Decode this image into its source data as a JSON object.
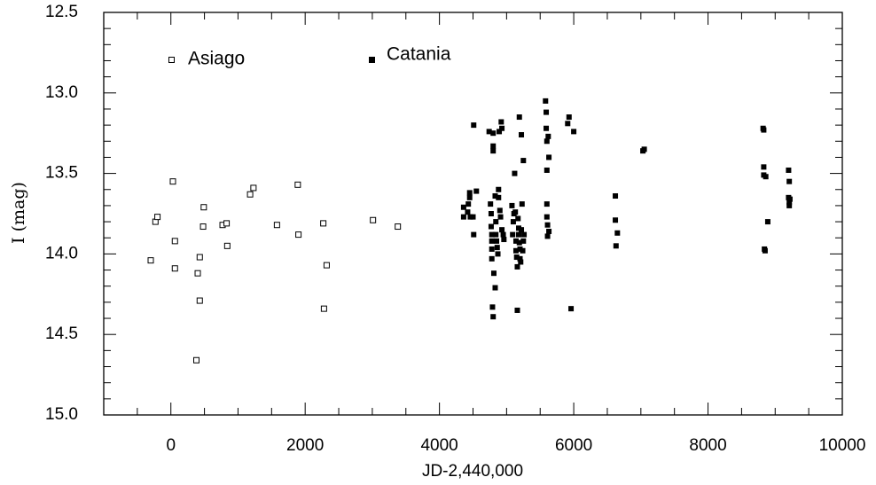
{
  "chart_data": {
    "type": "scatter",
    "xlabel": "JD-2,440,000",
    "ylabel": "I (mag)",
    "xlim": [
      -1000,
      10000
    ],
    "ylim": [
      15.0,
      12.5
    ],
    "y_inverted": true,
    "x_ticks": [
      0,
      2000,
      4000,
      6000,
      8000,
      10000
    ],
    "x_tick_labels": [
      "0",
      "2000",
      "4000",
      "6000",
      "8000",
      "10000"
    ],
    "y_ticks": [
      12.5,
      13.0,
      13.5,
      14.0,
      14.5,
      15.0
    ],
    "y_tick_labels": [
      "12.5",
      "13.0",
      "13.5",
      "14.0",
      "14.5",
      "15.0"
    ],
    "grid": false,
    "legend_placement": "top-left",
    "series": [
      {
        "name": "Asiago",
        "marker": "open-square",
        "points": [
          [
            -300,
            14.04
          ],
          [
            -230,
            13.8
          ],
          [
            -200,
            13.77
          ],
          [
            30,
            13.55
          ],
          [
            60,
            13.92
          ],
          [
            60,
            14.09
          ],
          [
            400,
            14.12
          ],
          [
            430,
            14.02
          ],
          [
            430,
            14.29
          ],
          [
            380,
            14.66
          ],
          [
            480,
            13.83
          ],
          [
            490,
            13.71
          ],
          [
            770,
            13.82
          ],
          [
            830,
            13.81
          ],
          [
            840,
            13.95
          ],
          [
            1180,
            13.63
          ],
          [
            1230,
            13.59
          ],
          [
            1580,
            13.82
          ],
          [
            1890,
            13.57
          ],
          [
            1900,
            13.88
          ],
          [
            2270,
            13.81
          ],
          [
            2280,
            14.34
          ],
          [
            2320,
            14.07
          ],
          [
            3010,
            13.79
          ],
          [
            3380,
            13.83
          ]
        ]
      },
      {
        "name": "Catania",
        "marker": "filled-square",
        "points": [
          [
            4360,
            13.71
          ],
          [
            4360,
            13.77
          ],
          [
            4420,
            13.74
          ],
          [
            4430,
            13.69
          ],
          [
            4450,
            13.62
          ],
          [
            4450,
            13.65
          ],
          [
            4460,
            13.77
          ],
          [
            4500,
            13.77
          ],
          [
            4510,
            13.88
          ],
          [
            4510,
            13.2
          ],
          [
            4550,
            13.61
          ],
          [
            4740,
            13.24
          ],
          [
            4760,
            13.69
          ],
          [
            4770,
            13.75
          ],
          [
            4770,
            13.83
          ],
          [
            4780,
            13.88
          ],
          [
            4780,
            13.92
          ],
          [
            4780,
            13.97
          ],
          [
            4780,
            14.03
          ],
          [
            4790,
            14.33
          ],
          [
            4800,
            14.39
          ],
          [
            4800,
            13.25
          ],
          [
            4800,
            13.33
          ],
          [
            4800,
            13.36
          ],
          [
            4810,
            14.12
          ],
          [
            4830,
            14.21
          ],
          [
            4830,
            13.64
          ],
          [
            4840,
            13.8
          ],
          [
            4840,
            13.88
          ],
          [
            4850,
            13.92
          ],
          [
            4860,
            13.96
          ],
          [
            4870,
            14.0
          ],
          [
            4880,
            13.65
          ],
          [
            4880,
            13.6
          ],
          [
            4890,
            13.24
          ],
          [
            4900,
            13.73
          ],
          [
            4910,
            13.77
          ],
          [
            4920,
            13.18
          ],
          [
            4930,
            13.22
          ],
          [
            4930,
            13.85
          ],
          [
            4950,
            13.88
          ],
          [
            4960,
            13.91
          ],
          [
            5080,
            13.7
          ],
          [
            5090,
            13.88
          ],
          [
            5100,
            13.8
          ],
          [
            5110,
            13.75
          ],
          [
            5120,
            13.5
          ],
          [
            5130,
            13.74
          ],
          [
            5140,
            13.92
          ],
          [
            5140,
            13.98
          ],
          [
            5150,
            14.02
          ],
          [
            5160,
            14.08
          ],
          [
            5160,
            14.35
          ],
          [
            5170,
            13.78
          ],
          [
            5180,
            13.84
          ],
          [
            5180,
            13.88
          ],
          [
            5190,
            13.93
          ],
          [
            5190,
            13.15
          ],
          [
            5200,
            13.97
          ],
          [
            5200,
            14.03
          ],
          [
            5210,
            14.05
          ],
          [
            5220,
            13.85
          ],
          [
            5220,
            13.26
          ],
          [
            5230,
            13.69
          ],
          [
            5240,
            13.98
          ],
          [
            5250,
            13.92
          ],
          [
            5250,
            13.42
          ],
          [
            5260,
            13.88
          ],
          [
            5580,
            13.05
          ],
          [
            5590,
            13.12
          ],
          [
            5590,
            13.22
          ],
          [
            5600,
            13.3
          ],
          [
            5600,
            13.48
          ],
          [
            5600,
            13.69
          ],
          [
            5600,
            13.77
          ],
          [
            5610,
            13.82
          ],
          [
            5610,
            13.89
          ],
          [
            5620,
            13.27
          ],
          [
            5630,
            13.4
          ],
          [
            5630,
            13.86
          ],
          [
            5910,
            13.19
          ],
          [
            5930,
            13.15
          ],
          [
            5960,
            14.34
          ],
          [
            6000,
            13.24
          ],
          [
            6620,
            13.64
          ],
          [
            6620,
            13.79
          ],
          [
            6630,
            13.95
          ],
          [
            6650,
            13.87
          ],
          [
            7030,
            13.36
          ],
          [
            7050,
            13.35
          ],
          [
            8820,
            13.22
          ],
          [
            8830,
            13.23
          ],
          [
            8830,
            13.46
          ],
          [
            8830,
            13.51
          ],
          [
            8840,
            13.97
          ],
          [
            8850,
            13.98
          ],
          [
            8860,
            13.52
          ],
          [
            8890,
            13.8
          ],
          [
            9200,
            13.48
          ],
          [
            9210,
            13.55
          ],
          [
            9200,
            13.65
          ],
          [
            9210,
            13.68
          ],
          [
            9210,
            13.7
          ],
          [
            9220,
            13.66
          ]
        ]
      }
    ]
  }
}
